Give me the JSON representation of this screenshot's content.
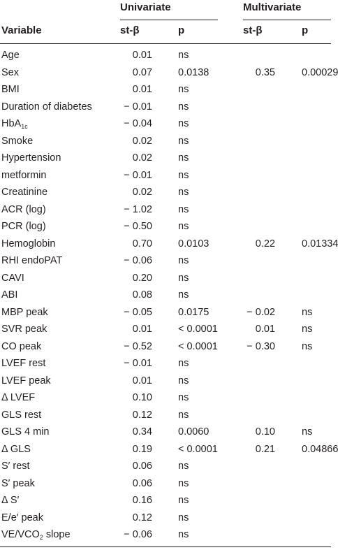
{
  "header": {
    "group_univariate": "Univariate",
    "group_multivariate": "Multivariate",
    "col_variable": "Variable",
    "col_st_beta_uni": "st-β",
    "col_p_uni": "p",
    "col_st_beta_multi": "st-β",
    "col_p_multi": "p"
  },
  "rows": [
    {
      "variable": "Age",
      "uni_beta": "0.01",
      "uni_p": "ns",
      "multi_beta": "",
      "multi_p": ""
    },
    {
      "variable": "Sex",
      "uni_beta": "0.07",
      "uni_p": "0.0138",
      "multi_beta": "0.35",
      "multi_p": "0.00029"
    },
    {
      "variable": "BMI",
      "uni_beta": "0.01",
      "uni_p": "ns",
      "multi_beta": "",
      "multi_p": ""
    },
    {
      "variable": "Duration of diabetes",
      "uni_beta": "− 0.01",
      "uni_p": "ns",
      "multi_beta": "",
      "multi_p": ""
    },
    {
      "variable": "HbA",
      "variable_sub": "1c",
      "uni_beta": "− 0.04",
      "uni_p": "ns",
      "multi_beta": "",
      "multi_p": ""
    },
    {
      "variable": "Smoke",
      "uni_beta": "0.02",
      "uni_p": "ns",
      "multi_beta": "",
      "multi_p": ""
    },
    {
      "variable": "Hypertension",
      "uni_beta": "0.02",
      "uni_p": "ns",
      "multi_beta": "",
      "multi_p": ""
    },
    {
      "variable": "metformin",
      "uni_beta": "− 0.01",
      "uni_p": "ns",
      "multi_beta": "",
      "multi_p": ""
    },
    {
      "variable": "Creatinine",
      "uni_beta": "0.02",
      "uni_p": "ns",
      "multi_beta": "",
      "multi_p": ""
    },
    {
      "variable": "ACR (log)",
      "uni_beta": "− 1.02",
      "uni_p": "ns",
      "multi_beta": "",
      "multi_p": ""
    },
    {
      "variable": "PCR (log)",
      "uni_beta": "− 0.50",
      "uni_p": "ns",
      "multi_beta": "",
      "multi_p": ""
    },
    {
      "variable": "Hemoglobin",
      "uni_beta": "0.70",
      "uni_p": "0.0103",
      "multi_beta": "0.22",
      "multi_p": "0.01334"
    },
    {
      "variable": "RHI endoPAT",
      "uni_beta": "− 0.06",
      "uni_p": "ns",
      "multi_beta": "",
      "multi_p": ""
    },
    {
      "variable": "CAVI",
      "uni_beta": "0.20",
      "uni_p": "ns",
      "multi_beta": "",
      "multi_p": ""
    },
    {
      "variable": "ABI",
      "uni_beta": "0.08",
      "uni_p": "ns",
      "multi_beta": "",
      "multi_p": ""
    },
    {
      "variable": "MBP peak",
      "uni_beta": "− 0.05",
      "uni_p": "0.0175",
      "multi_beta": "− 0.02",
      "multi_p": "ns"
    },
    {
      "variable": "SVR peak",
      "uni_beta": "0.01",
      "uni_p": "< 0.0001",
      "multi_beta": "0.01",
      "multi_p": "ns"
    },
    {
      "variable": "CO peak",
      "uni_beta": "− 0.52",
      "uni_p": "< 0.0001",
      "multi_beta": "− 0.30",
      "multi_p": "ns"
    },
    {
      "variable": "LVEF rest",
      "uni_beta": "− 0.01",
      "uni_p": "ns",
      "multi_beta": "",
      "multi_p": ""
    },
    {
      "variable": "LVEF peak",
      "uni_beta": "0.01",
      "uni_p": "ns",
      "multi_beta": "",
      "multi_p": ""
    },
    {
      "variable": "Δ LVEF",
      "uni_beta": "0.10",
      "uni_p": "ns",
      "multi_beta": "",
      "multi_p": ""
    },
    {
      "variable": "GLS rest",
      "uni_beta": "0.12",
      "uni_p": "ns",
      "multi_beta": "",
      "multi_p": ""
    },
    {
      "variable": "GLS 4 min",
      "uni_beta": "0.34",
      "uni_p": "0.0060",
      "multi_beta": "0.10",
      "multi_p": "ns"
    },
    {
      "variable": "Δ GLS",
      "uni_beta": "0.19",
      "uni_p": "< 0.0001",
      "multi_beta": "0.21",
      "multi_p": "0.04866"
    },
    {
      "variable": "S′ rest",
      "uni_beta": "0.06",
      "uni_p": "ns",
      "multi_beta": "",
      "multi_p": ""
    },
    {
      "variable": "S′ peak",
      "uni_beta": "0.06",
      "uni_p": "ns",
      "multi_beta": "",
      "multi_p": ""
    },
    {
      "variable": "Δ S′",
      "uni_beta": "0.16",
      "uni_p": "ns",
      "multi_beta": "",
      "multi_p": ""
    },
    {
      "variable": "E/e′ peak",
      "uni_beta": "0.12",
      "uni_p": "ns",
      "multi_beta": "",
      "multi_p": ""
    },
    {
      "variable": "VE/VCO",
      "variable_sub": "2",
      "variable_suffix": " slope",
      "uni_beta": "− 0.06",
      "uni_p": "ns",
      "multi_beta": "",
      "multi_p": ""
    }
  ]
}
